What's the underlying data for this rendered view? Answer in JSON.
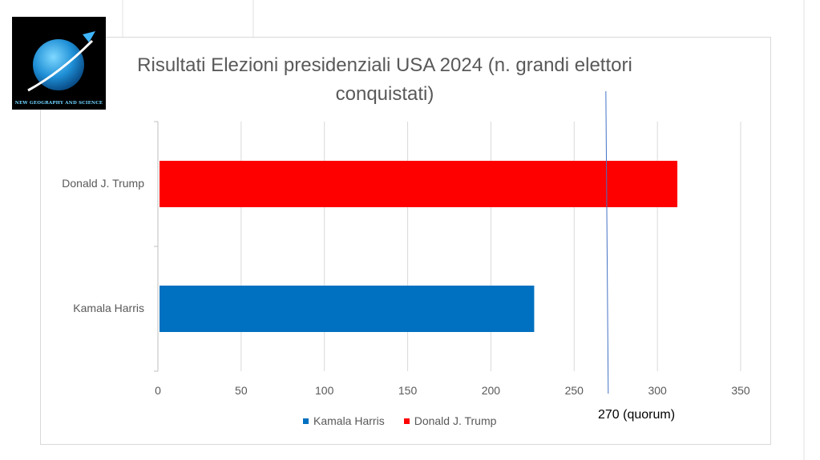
{
  "logo": {
    "text": "New Geography and Science"
  },
  "chart_data": {
    "type": "bar",
    "orientation": "horizontal",
    "title": "Risultati Elezioni presidenziali USA 2024 (n. grandi elettori conquistati)",
    "title_lines": [
      "Risultati Elezioni presidenziali USA 2024 (n. grandi elettori",
      "conquistati)"
    ],
    "categories": [
      "Donald J. Trump",
      "Kamala Harris"
    ],
    "values": [
      312,
      226
    ],
    "colors": [
      "#ff0000",
      "#0070c0"
    ],
    "xlim": [
      0,
      350
    ],
    "ticks": [
      "0",
      "50",
      "100",
      "150",
      "200",
      "250",
      "300",
      "350"
    ],
    "grid": true,
    "legend": {
      "position": "bottom",
      "entries": [
        {
          "name": "Kamala Harris",
          "color": "#0070c0"
        },
        {
          "name": "Donald J. Trump",
          "color": "#ff0000"
        }
      ]
    },
    "annotation": {
      "value": 270,
      "label": "270 (quorum)"
    }
  }
}
